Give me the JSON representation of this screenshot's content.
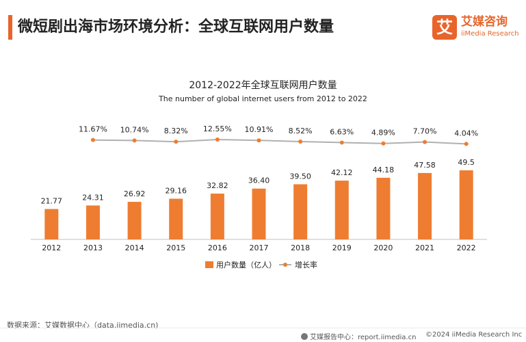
{
  "header": {
    "title": "微短剧出海市场环境分析：全球互联网用户数量"
  },
  "logo": {
    "mark": "艾",
    "cn": "艾媒咨询",
    "en": "iiMedia Research"
  },
  "chart_data": {
    "type": "bar+line",
    "title": "2012-2022年全球互联网用户数量",
    "subtitle": "The number of global internet users from 2012 to 2022",
    "categories": [
      "2012",
      "2013",
      "2014",
      "2015",
      "2016",
      "2017",
      "2018",
      "2019",
      "2020",
      "2021",
      "2022"
    ],
    "series": [
      {
        "name": "用户数量（亿人）",
        "type": "bar",
        "values": [
          21.77,
          24.31,
          26.92,
          29.16,
          32.82,
          36.4,
          39.5,
          42.12,
          44.18,
          47.58,
          49.5
        ],
        "labels": [
          "21.77",
          "24.31",
          "26.92",
          "29.16",
          "32.82",
          "36.40",
          "39.50",
          "42.12",
          "44.18",
          "47.58",
          "49.5"
        ],
        "color": "#ee7d31"
      },
      {
        "name": "增长率",
        "type": "line",
        "values": [
          null,
          11.67,
          10.74,
          8.32,
          12.55,
          10.91,
          8.52,
          6.63,
          4.89,
          7.7,
          4.04
        ],
        "labels": [
          null,
          "11.67%",
          "10.74%",
          "8.32%",
          "12.55%",
          "10.91%",
          "8.52%",
          "6.63%",
          "4.89%",
          "7.70%",
          "4.04%"
        ],
        "color": "#ee7d31",
        "line_color": "#b0b0b0"
      }
    ],
    "grid": false,
    "legend_position": "bottom-center"
  },
  "footer": {
    "source": "数据来源：艾媒数据中心（data.iimedia.cn)",
    "report_center": "艾媒报告中心：report.iimedia.cn",
    "copyright": "©2024  iiMedia Research Inc"
  }
}
